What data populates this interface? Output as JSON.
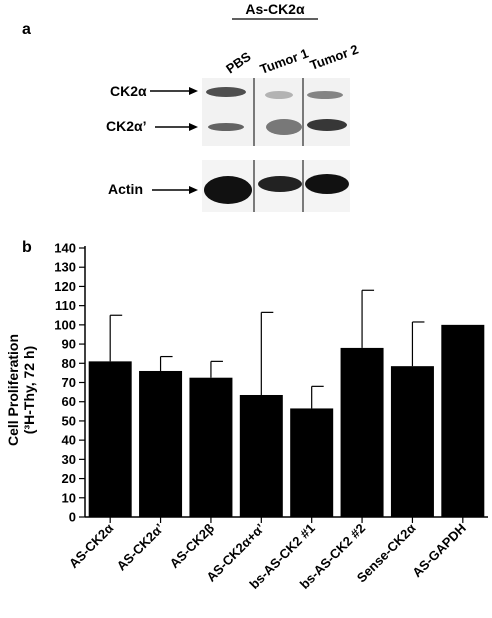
{
  "panel_a": {
    "label": "a",
    "group_label": "As-CK2α",
    "lanes": [
      "PBS",
      "Tumor 1",
      "Tumor 2"
    ],
    "bands": [
      "CK2α",
      "CK2α’",
      "Actin"
    ]
  },
  "chart_data": {
    "type": "bar",
    "panel_label": "b",
    "ylabel_line1": "Cell Proliferation",
    "ylabel_line2": "(³H-Thy, 72 h)",
    "categories": [
      "AS-CK2α",
      "AS-CK2α’",
      "AS-CK2β",
      "AS-CK2α+α’",
      "bs-AS-CK2 #1",
      "bs-AS-CK2 #2",
      "Sense-CK2α",
      "AS-GAPDH"
    ],
    "values": [
      81,
      76,
      72.5,
      63.5,
      56.5,
      88,
      78.5,
      100
    ],
    "errors": [
      24,
      7.5,
      8.5,
      43,
      11.5,
      30,
      23,
      0
    ],
    "ylim": [
      0,
      140
    ],
    "yticks": [
      0,
      10,
      20,
      30,
      40,
      50,
      60,
      70,
      80,
      90,
      100,
      110,
      120,
      130,
      140
    ],
    "bar_color": "#000000"
  }
}
